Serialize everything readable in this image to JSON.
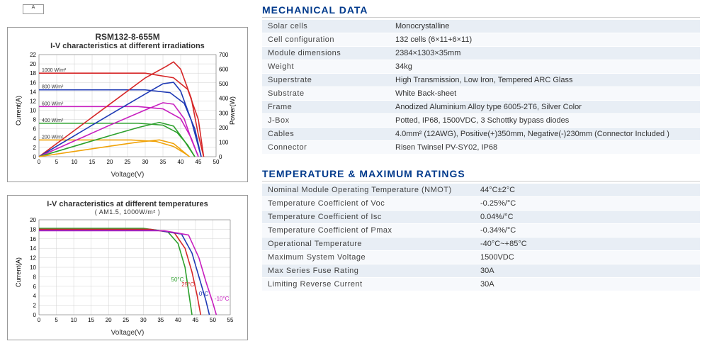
{
  "top_stub": "A",
  "chart1": {
    "title": "RSM132-8-655M",
    "subtitle": "I-V characteristics at different irradiations",
    "x_label": "Voltage(V)",
    "y_left_label": "Current(A)",
    "y_right_label": "Power(W)",
    "xlim": [
      0,
      50
    ],
    "xtick_step": 5,
    "ylim_left": [
      0,
      22
    ],
    "ytick_left_step": 2,
    "ylim_right": [
      0,
      700
    ],
    "ytick_right_step": 100,
    "grid_color": "#d0d0d0",
    "series_labels": [
      "1000 W/m²",
      "800 W/m²",
      "600 W/m²",
      "400 W/m²",
      "200 W/m²"
    ],
    "iv_colors": [
      "#d62728",
      "#1f3ab5",
      "#c71fbf",
      "#2ca02c",
      "#f0a30a"
    ],
    "iv_curves": [
      [
        [
          0,
          18
        ],
        [
          30,
          18
        ],
        [
          38,
          17
        ],
        [
          42,
          14.5
        ],
        [
          45,
          8
        ],
        [
          46.5,
          0
        ]
      ],
      [
        [
          0,
          14.4
        ],
        [
          30,
          14.4
        ],
        [
          37,
          13.8
        ],
        [
          41,
          11.5
        ],
        [
          44,
          6
        ],
        [
          45.8,
          0
        ]
      ],
      [
        [
          0,
          10.8
        ],
        [
          28,
          10.8
        ],
        [
          35,
          10.3
        ],
        [
          40,
          8.2
        ],
        [
          43,
          4
        ],
        [
          45,
          0
        ]
      ],
      [
        [
          0,
          7.2
        ],
        [
          28,
          7.2
        ],
        [
          35,
          6.8
        ],
        [
          39,
          5.2
        ],
        [
          42,
          2.5
        ],
        [
          44,
          0
        ]
      ],
      [
        [
          0,
          3.6
        ],
        [
          26,
          3.6
        ],
        [
          33,
          3.3
        ],
        [
          38,
          2.2
        ],
        [
          41,
          0.8
        ],
        [
          42.5,
          0
        ]
      ]
    ],
    "pv_curves": [
      [
        [
          0,
          0
        ],
        [
          10,
          180
        ],
        [
          20,
          360
        ],
        [
          30,
          540
        ],
        [
          36,
          620
        ],
        [
          38,
          650
        ],
        [
          40,
          600
        ],
        [
          43,
          400
        ],
        [
          45,
          150
        ],
        [
          46.5,
          0
        ]
      ],
      [
        [
          0,
          0
        ],
        [
          10,
          144
        ],
        [
          20,
          288
        ],
        [
          30,
          430
        ],
        [
          35,
          500
        ],
        [
          38,
          510
        ],
        [
          40,
          450
        ],
        [
          43,
          250
        ],
        [
          45.8,
          0
        ]
      ],
      [
        [
          0,
          0
        ],
        [
          10,
          108
        ],
        [
          20,
          216
        ],
        [
          30,
          320
        ],
        [
          35,
          370
        ],
        [
          38,
          360
        ],
        [
          41,
          260
        ],
        [
          43,
          120
        ],
        [
          45,
          0
        ]
      ],
      [
        [
          0,
          0
        ],
        [
          10,
          72
        ],
        [
          20,
          144
        ],
        [
          28,
          200
        ],
        [
          34,
          235
        ],
        [
          38,
          210
        ],
        [
          41,
          110
        ],
        [
          44,
          0
        ]
      ],
      [
        [
          0,
          0
        ],
        [
          10,
          36
        ],
        [
          20,
          72
        ],
        [
          28,
          100
        ],
        [
          34,
          115
        ],
        [
          38,
          90
        ],
        [
          41,
          30
        ],
        [
          42.5,
          0
        ]
      ]
    ]
  },
  "chart2": {
    "subtitle": "I-V characteristics at different temperatures",
    "conditions": "( AM1.5,  1000W/m² )",
    "x_label": "Voltage(V)",
    "y_left_label": "Current(A)",
    "xlim": [
      0,
      55
    ],
    "xtick_step": 5,
    "ylim": [
      0,
      20
    ],
    "ytick_step": 2,
    "grid_color": "#d0d0d0",
    "temp_labels": [
      "50°C",
      "25°C",
      "0°C",
      "-10°C"
    ],
    "temp_colors": [
      "#2ca02c",
      "#d62728",
      "#1f3ab5",
      "#c71fbf"
    ],
    "temp_curves": [
      [
        [
          0,
          18.2
        ],
        [
          30,
          18.2
        ],
        [
          37,
          17.5
        ],
        [
          40,
          15
        ],
        [
          42,
          10
        ],
        [
          43,
          5
        ],
        [
          44,
          0
        ]
      ],
      [
        [
          0,
          18.0
        ],
        [
          32,
          18.0
        ],
        [
          39,
          17.2
        ],
        [
          42,
          14
        ],
        [
          44,
          9
        ],
        [
          45.5,
          4
        ],
        [
          46.5,
          0
        ]
      ],
      [
        [
          0,
          17.8
        ],
        [
          34,
          17.8
        ],
        [
          41,
          17
        ],
        [
          44,
          13
        ],
        [
          46,
          8
        ],
        [
          48,
          3
        ],
        [
          49,
          0
        ]
      ],
      [
        [
          0,
          17.7
        ],
        [
          36,
          17.7
        ],
        [
          43,
          16.8
        ],
        [
          46,
          12
        ],
        [
          48,
          7
        ],
        [
          50,
          2.5
        ],
        [
          51,
          0
        ]
      ]
    ]
  },
  "mech_title": "MECHANICAL DATA",
  "mech_rows": [
    [
      "Solar cells",
      "Monocrystalline"
    ],
    [
      "Cell configuration",
      "132 cells (6×11+6×11)"
    ],
    [
      "Module dimensions",
      "2384×1303×35mm"
    ],
    [
      "Weight",
      "34kg"
    ],
    [
      "Superstrate",
      "High Transmission, Low Iron, Tempered ARC Glass"
    ],
    [
      "Substrate",
      "White Back-sheet"
    ],
    [
      "Frame",
      "Anodized Aluminium Alloy type 6005-2T6, Silver Color"
    ],
    [
      "J-Box",
      "Potted, IP68, 1500VDC, 3 Schottky bypass diodes"
    ],
    [
      "Cables",
      "4.0mm² (12AWG), Positive(+)350mm, Negative(-)230mm (Connector Included )"
    ],
    [
      "Connector",
      "Risen Twinsel PV-SY02, IP68"
    ]
  ],
  "temp_title": "TEMPERATURE & MAXIMUM RATINGS",
  "temp_rows": [
    [
      "Nominal Module Operating Temperature (NMOT)",
      "44°C±2°C"
    ],
    [
      "Temperature Coefficient of Voc",
      "-0.25%/°C"
    ],
    [
      "Temperature Coefficient of Isc",
      "0.04%/°C"
    ],
    [
      "Temperature Coefficient of Pmax",
      "-0.34%/°C"
    ],
    [
      "Operational Temperature",
      "-40°C~+85°C"
    ],
    [
      "Maximum System Voltage",
      "1500VDC"
    ],
    [
      "Max Series Fuse Rating",
      "30A"
    ],
    [
      "Limiting Reverse Current",
      "30A"
    ]
  ]
}
